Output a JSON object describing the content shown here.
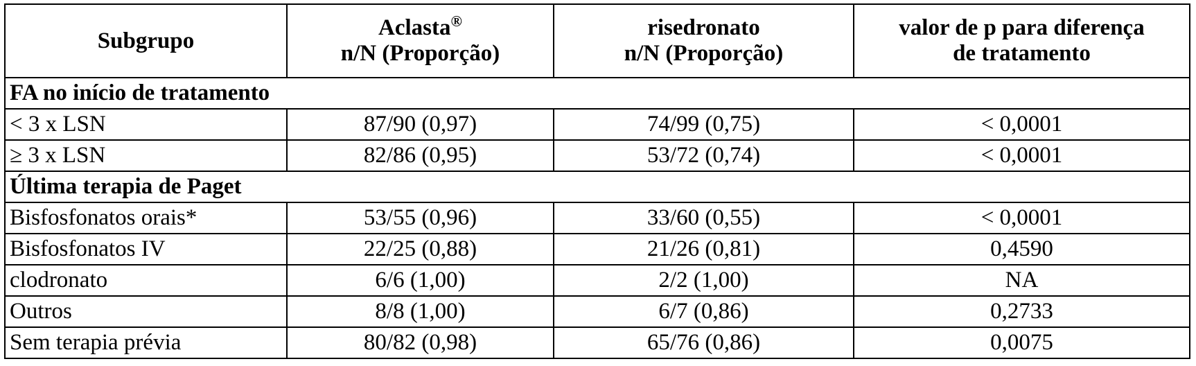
{
  "table": {
    "columns": [
      {
        "lines": [
          "Subgrupo"
        ]
      },
      {
        "lines": [
          "Aclasta",
          "n/N (Proporção)"
        ],
        "sup": "®"
      },
      {
        "lines": [
          "risedronato",
          "n/N (Proporção)"
        ]
      },
      {
        "lines": [
          "valor de p para diferença",
          "de tratamento"
        ]
      }
    ],
    "sections": [
      {
        "title": "FA no início de tratamento",
        "rows": [
          [
            "< 3 x LSN",
            "87/90 (0,97)",
            "74/99 (0,75)",
            "< 0,0001"
          ],
          [
            "≥ 3 x LSN",
            "82/86 (0,95)",
            "53/72 (0,74)",
            "< 0,0001"
          ]
        ]
      },
      {
        "title": "Última terapia de Paget",
        "rows": [
          [
            "Bisfosfonatos orais*",
            "53/55 (0,96)",
            "33/60 (0,55)",
            "< 0,0001"
          ],
          [
            "Bisfosfonatos IV",
            "22/25 (0,88)",
            "21/26 (0,81)",
            "0,4590"
          ],
          [
            "clodronato",
            "6/6 (1,00)",
            "2/2 (1,00)",
            "NA"
          ],
          [
            "Outros",
            "8/8 (1,00)",
            "6/7 (0,86)",
            "0,2733"
          ],
          [
            "Sem terapia prévia",
            "80/82 (0,98)",
            "65/76 (0,86)",
            "0,0075"
          ]
        ]
      }
    ]
  }
}
